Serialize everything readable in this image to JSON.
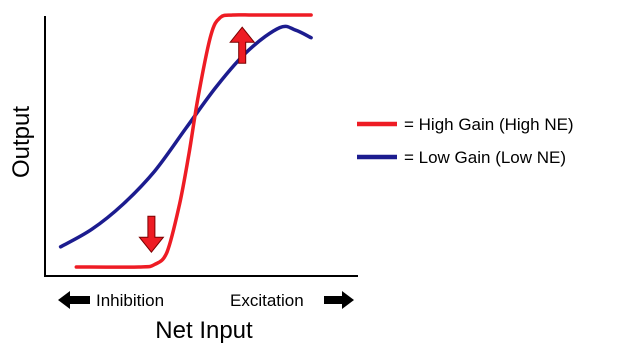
{
  "chart_data": {
    "type": "line",
    "xlabel": "Net Input",
    "ylabel": "Output",
    "x_direction_labels": {
      "left": "Inhibition",
      "right": "Excitation"
    },
    "xlim": [
      0,
      10
    ],
    "ylim": [
      0,
      1
    ],
    "grid": false,
    "legend_position": "right",
    "legend_prefix": "=",
    "series": [
      {
        "name": "High Gain (High NE)",
        "color": "#ee1c24",
        "x": [
          1.0,
          3.0,
          3.5,
          3.9,
          4.3,
          4.6,
          4.9,
          5.3,
          5.6,
          6.0,
          6.6,
          7.2,
          8.5
        ],
        "y": [
          0.0,
          0.0,
          0.01,
          0.06,
          0.25,
          0.45,
          0.68,
          0.92,
          0.99,
          1.0,
          1.0,
          1.0,
          1.0
        ]
      },
      {
        "name": "Low Gain (Low NE)",
        "color": "#1c1c8f",
        "x": [
          0.5,
          1.5,
          2.5,
          3.5,
          4.5,
          5.5,
          6.5,
          7.5,
          8.0,
          8.5
        ],
        "y": [
          0.08,
          0.15,
          0.25,
          0.38,
          0.55,
          0.72,
          0.86,
          0.95,
          0.94,
          0.91
        ]
      }
    ],
    "annotations": [
      {
        "type": "arrow",
        "direction": "up",
        "color": "#ee1c24",
        "x": 6.3,
        "y": 0.88
      },
      {
        "type": "arrow",
        "direction": "down",
        "color": "#ee1c24",
        "x": 3.4,
        "y": 0.13
      }
    ]
  }
}
